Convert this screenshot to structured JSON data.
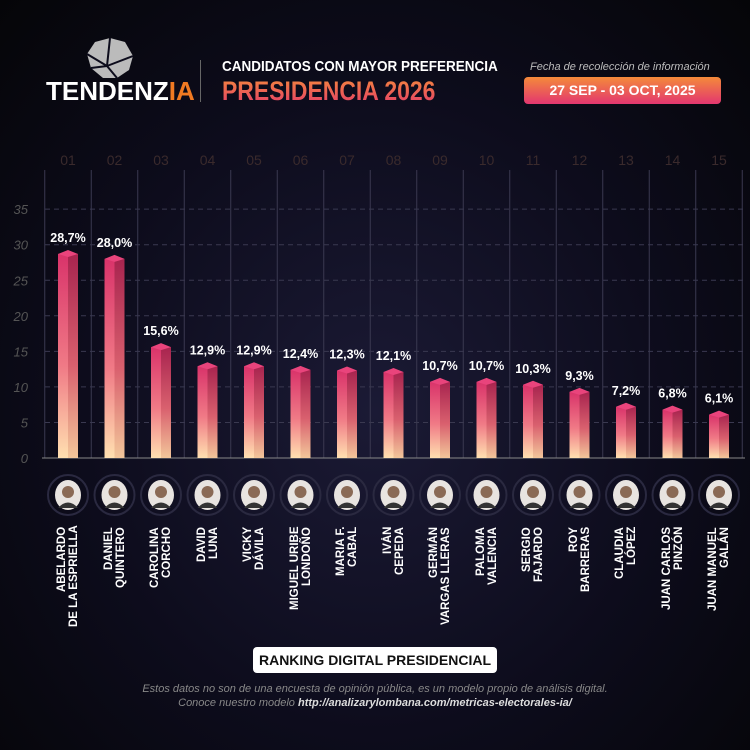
{
  "header": {
    "logo_main": "TENDENZ",
    "logo_accent": "IA",
    "subtitle": "CANDIDATOS CON MAYOR PREFERENCIA",
    "title": "PRESIDENCIA 2026",
    "date_label": "Fecha de recolección de información",
    "date_range": "27 SEP - 03 OCT, 2025"
  },
  "footer": {
    "ranking_label": "RANKING DIGITAL PRESIDENCIAL",
    "disclaimer": "Estos datos no son de una encuesta de opinión pública, es un modelo propio de análisis digital.",
    "model_prefix": "Conoce nuestro modelo",
    "model_url": "http://analizarylombana.com/metricas-electorales-ia/"
  },
  "colors": {
    "bar_top": "#d9336a",
    "bar_bottom": "#ffe0b0",
    "accent": "#f07a22"
  },
  "chart_data": {
    "type": "bar",
    "title": "PRESIDENCIA 2026",
    "ylim": [
      0,
      35
    ],
    "yticks": [
      0,
      5,
      10,
      15,
      20,
      25,
      30,
      35
    ],
    "grid": true,
    "ranks": [
      "01",
      "02",
      "03",
      "04",
      "05",
      "06",
      "07",
      "08",
      "09",
      "10",
      "11",
      "12",
      "13",
      "14",
      "15"
    ],
    "categories": [
      "ABELARDO\nDE LA ESPRIELLA",
      "DANIEL\nQUINTERO",
      "CAROLINA\nCORCHO",
      "DAVID\nLUNA",
      "VICKY\nDÁVILA",
      "MIGUEL URIBE\nLONDOÑO",
      "MARIA F.\nCABAL",
      "IVÁN\nCEPEDA",
      "GERMÁN\nVARGAS LLERAS",
      "PALOMA\nVALENCIA",
      "SERGIO\nFAJARDO",
      "ROY\nBARRERAS",
      "CLAUDIA\nLÓPEZ",
      "JUAN CARLOS\nPINZÓN",
      "JUAN MANUEL\nGALÁN"
    ],
    "values": [
      28.7,
      28.0,
      15.6,
      12.9,
      12.9,
      12.4,
      12.3,
      12.1,
      10.7,
      10.7,
      10.3,
      9.3,
      7.2,
      6.8,
      6.1
    ],
    "value_labels": [
      "28,7%",
      "28,0%",
      "15,6%",
      "12,9%",
      "12,9%",
      "12,4%",
      "12,3%",
      "12,1%",
      "10,7%",
      "10,7%",
      "10,3%",
      "9,3%",
      "7,2%",
      "6,8%",
      "6,1%"
    ]
  }
}
